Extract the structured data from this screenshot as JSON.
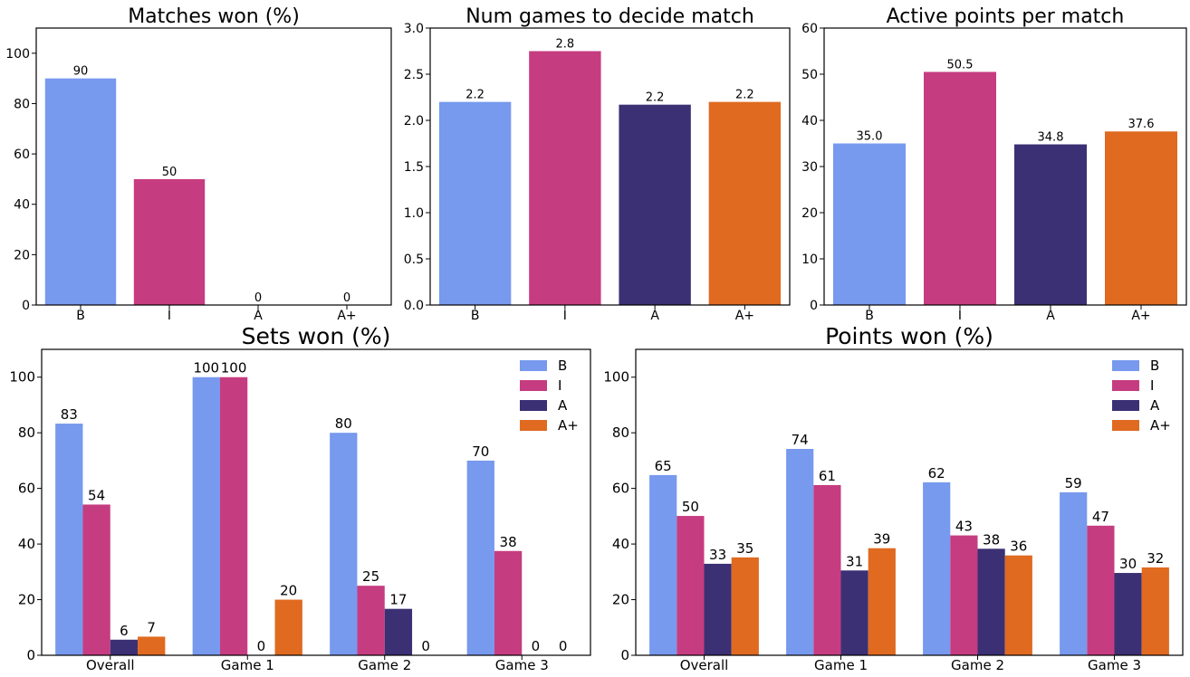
{
  "colors": {
    "B": "#7799ee",
    "I": "#c63c80",
    "A": "#3b3074",
    "A+": "#df6a20"
  },
  "chart_data": [
    {
      "type": "bar",
      "title": "Matches won (%)",
      "categories": [
        "B",
        "I",
        "A",
        "A+"
      ],
      "values": [
        90,
        50,
        0,
        0
      ],
      "value_labels": [
        "90",
        "50",
        "0",
        "0"
      ],
      "ylim": [
        0,
        110
      ],
      "yticks": [
        "0",
        "20",
        "40",
        "60",
        "80",
        "100"
      ],
      "ytick_values": [
        0,
        20,
        40,
        60,
        80,
        100
      ]
    },
    {
      "type": "bar",
      "title": "Num games to decide match",
      "categories": [
        "B",
        "I",
        "A",
        "A+"
      ],
      "values": [
        2.2,
        2.75,
        2.17,
        2.2
      ],
      "value_labels": [
        "2.2",
        "2.8",
        "2.2",
        "2.2"
      ],
      "ylim": [
        0,
        3.0
      ],
      "yticks": [
        "0.0",
        "0.5",
        "1.0",
        "1.5",
        "2.0",
        "2.5",
        "3.0"
      ],
      "ytick_values": [
        0,
        0.5,
        1.0,
        1.5,
        2.0,
        2.5,
        3.0
      ]
    },
    {
      "type": "bar",
      "title": "Active points per match",
      "categories": [
        "B",
        "I",
        "A",
        "A+"
      ],
      "values": [
        35.0,
        50.5,
        34.8,
        37.6
      ],
      "value_labels": [
        "35.0",
        "50.5",
        "34.8",
        "37.6"
      ],
      "ylim": [
        0,
        60
      ],
      "yticks": [
        "0",
        "10",
        "20",
        "30",
        "40",
        "50",
        "60"
      ],
      "ytick_values": [
        0,
        10,
        20,
        30,
        40,
        50,
        60
      ]
    },
    {
      "type": "bar",
      "title": "Sets won (%)",
      "categories": [
        "Overall",
        "Game 1",
        "Game 2",
        "Game 3"
      ],
      "series": [
        {
          "name": "B",
          "values": [
            83.3,
            100,
            80,
            70
          ],
          "labels": [
            "83",
            "100",
            "80",
            "70"
          ]
        },
        {
          "name": "I",
          "values": [
            54.2,
            100,
            25,
            37.5
          ],
          "labels": [
            "54",
            "100",
            "25",
            "38"
          ]
        },
        {
          "name": "A",
          "values": [
            5.6,
            0,
            16.7,
            0
          ],
          "labels": [
            "6",
            "0",
            "17",
            "0"
          ]
        },
        {
          "name": "A+",
          "values": [
            6.7,
            20,
            0,
            0
          ],
          "labels": [
            "7",
            "20",
            "0",
            "0"
          ]
        }
      ],
      "ylim": [
        0,
        110
      ],
      "yticks": [
        "0",
        "20",
        "40",
        "60",
        "80",
        "100"
      ],
      "ytick_values": [
        0,
        20,
        40,
        60,
        80,
        100
      ],
      "legend": "top-right"
    },
    {
      "type": "bar",
      "title": "Points won (%)",
      "categories": [
        "Overall",
        "Game 1",
        "Game 2",
        "Game 3"
      ],
      "series": [
        {
          "name": "B",
          "values": [
            64.8,
            74.2,
            62.2,
            58.6
          ],
          "labels": [
            "65",
            "74",
            "62",
            "59"
          ]
        },
        {
          "name": "I",
          "values": [
            50.1,
            61.2,
            43.1,
            46.6
          ],
          "labels": [
            "50",
            "61",
            "43",
            "47"
          ]
        },
        {
          "name": "A",
          "values": [
            32.9,
            30.5,
            38.3,
            29.6
          ],
          "labels": [
            "33",
            "31",
            "38",
            "30"
          ]
        },
        {
          "name": "A+",
          "values": [
            35.2,
            38.5,
            35.9,
            31.6
          ],
          "labels": [
            "35",
            "39",
            "36",
            "32"
          ]
        }
      ],
      "ylim": [
        0,
        110
      ],
      "yticks": [
        "0",
        "20",
        "40",
        "60",
        "80",
        "100"
      ],
      "ytick_values": [
        0,
        20,
        40,
        60,
        80,
        100
      ],
      "legend": "top-right"
    }
  ]
}
